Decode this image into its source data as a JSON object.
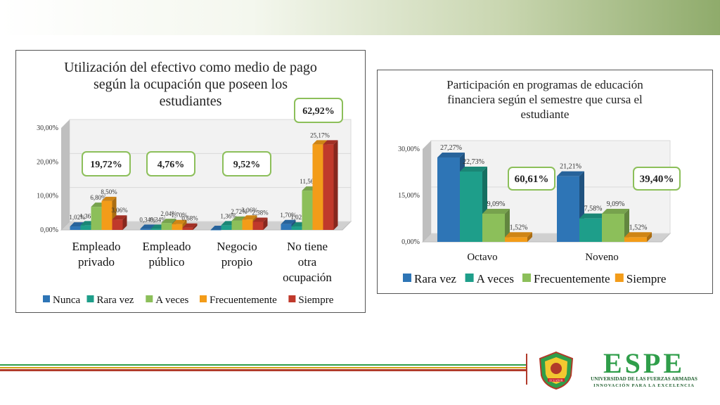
{
  "chart_data": [
    {
      "type": "bar",
      "title": "Utilización del efectivo como medio de pago según la ocupación que poseen los estudiantes",
      "title_lines": [
        "Utilización del efectivo como medio de pago",
        "según la ocupación que poseen los",
        "estudiantes"
      ],
      "categories": [
        "Empleado privado",
        "Empleado público",
        "Negocio propio",
        "No tiene otra ocupación"
      ],
      "category_lines": [
        [
          "Empleado",
          "privado"
        ],
        [
          "Empleado",
          "público"
        ],
        [
          "Negocio",
          "propio"
        ],
        [
          "No tiene",
          "otra",
          "ocupación"
        ]
      ],
      "series": [
        {
          "name": "Nunca",
          "color": "#2e75b6",
          "values": [
            1.02,
            0.34,
            0,
            1.7
          ],
          "labels": [
            "1,02%",
            "0,34%",
            "",
            "1,70%"
          ]
        },
        {
          "name": "Rara vez",
          "color": "#1e9e8a",
          "values": [
            1.36,
            0.34,
            1.36,
            1.02
          ],
          "labels": [
            "1,36%",
            "0,34%",
            "1,36%",
            "1,02%"
          ]
        },
        {
          "name": "A veces",
          "color": "#8cbf5a",
          "values": [
            6.8,
            2.04,
            2.72,
            11.56
          ],
          "labels": [
            "6,80%",
            "2,04%",
            "2,72%",
            "11,56%"
          ]
        },
        {
          "name": "Frecuentemente",
          "color": "#f39c19",
          "values": [
            8.5,
            1.7,
            3.06,
            25.17
          ],
          "labels": [
            "8,50%",
            "1,70%",
            "3,06%",
            "25,17%"
          ]
        },
        {
          "name": "Siempre",
          "color": "#c0392b",
          "values": [
            3.06,
            0.68,
            2.38,
            25.17
          ],
          "labels": [
            "3,06%",
            "0,68%",
            "2,38%",
            ""
          ]
        }
      ],
      "ylim": [
        0,
        30
      ],
      "yticks": [
        "0,00%",
        "10,00%",
        "20,00%",
        "30,00%"
      ],
      "legend": "bottom",
      "callouts": [
        "19,72%",
        "4,76%",
        "9,52%",
        "62,92%"
      ]
    },
    {
      "type": "bar",
      "title": "Participación en programas de educación financiera según el semestre que cursa el estudiante",
      "title_lines": [
        "Participación en programas de educación",
        "financiera según el semestre que cursa el",
        "estudiante"
      ],
      "categories": [
        "Octavo",
        "Noveno"
      ],
      "series": [
        {
          "name": "Rara vez",
          "color": "#2e75b6",
          "values": [
            27.27,
            21.21
          ],
          "labels": [
            "27,27%",
            "21,21%"
          ]
        },
        {
          "name": "A veces",
          "color": "#1e9e8a",
          "values": [
            22.73,
            7.58
          ],
          "labels": [
            "22,73%",
            "7,58%"
          ]
        },
        {
          "name": "Frecuentemente",
          "color": "#8cbf5a",
          "values": [
            9.09,
            9.09
          ],
          "labels": [
            "9,09%",
            "9,09%"
          ]
        },
        {
          "name": "Siempre",
          "color": "#f39c19",
          "values": [
            1.52,
            1.52
          ],
          "labels": [
            "1,52%",
            "1,52%"
          ]
        }
      ],
      "ylim": [
        0,
        30
      ],
      "yticks": [
        "0,00%",
        "15,00%",
        "30,00%"
      ],
      "legend": "bottom",
      "callouts": [
        "60,61%",
        "39,40%"
      ]
    }
  ],
  "branding": {
    "logo_word": "ESPE",
    "logo_line1": "UNIVERSIDAD DE LAS FUERZAS ARMADAS",
    "logo_line2": "INNOVACIÓN PARA LA EXCELENCIA",
    "seal_text": "ECUADOR"
  },
  "colors": {
    "accent_green": "#8fab6b",
    "logo_green": "#2f9e4a",
    "callout_border": "#8cbf5a"
  }
}
